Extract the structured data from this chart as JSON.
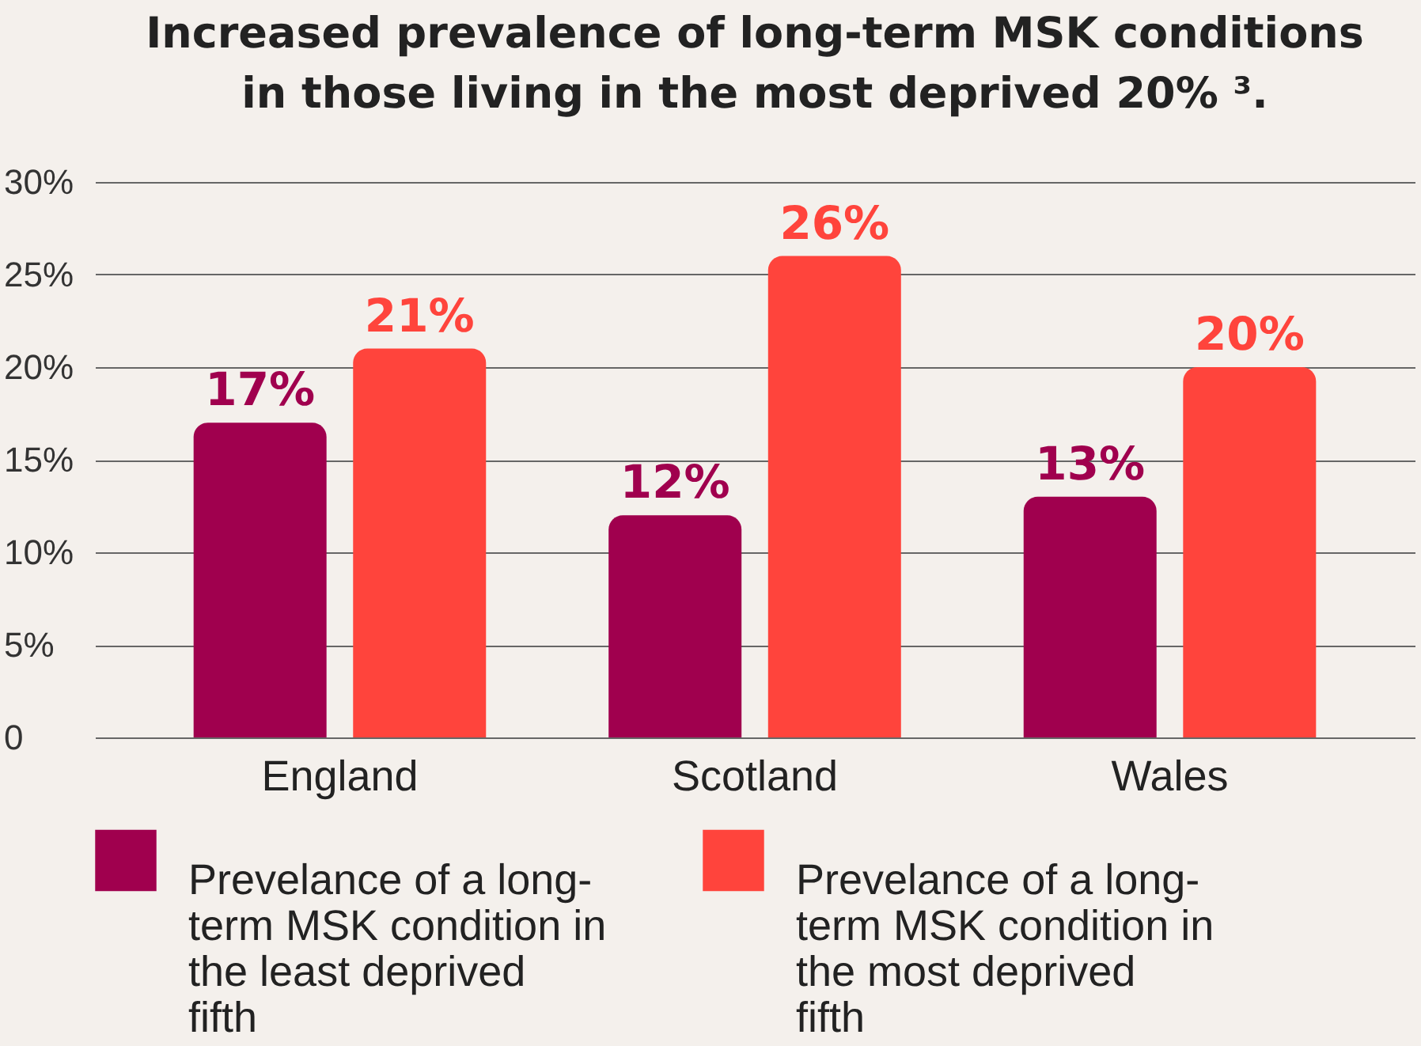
{
  "chart_data": {
    "type": "bar",
    "title": "Increased prevalence of long-term MSK conditions in those living in the most deprived 20% ³.",
    "categories": [
      "England",
      "Scotland",
      "Wales"
    ],
    "series": [
      {
        "name": "Prevelance of a long-term MSK condition in the least deprived fifth",
        "color": "#a0004e",
        "values": [
          17,
          12,
          13
        ],
        "value_labels": [
          "17%",
          "12%",
          "13%"
        ]
      },
      {
        "name": "Prevelance of a long-term MSK condition in the most deprived fifth",
        "color": "#ff443c",
        "values": [
          21,
          26,
          20
        ],
        "value_labels": [
          "21%",
          "26%",
          "20%"
        ]
      }
    ],
    "ylim": [
      0,
      30
    ],
    "yticks": [
      {
        "value": 0,
        "label": "0"
      },
      {
        "value": 5,
        "label": "5%"
      },
      {
        "value": 10,
        "label": "10%"
      },
      {
        "value": 15,
        "label": "15%"
      },
      {
        "value": 20,
        "label": "20%"
      },
      {
        "value": 25,
        "label": "25%"
      },
      {
        "value": 30,
        "label": "30%"
      }
    ],
    "grid": "y",
    "legend": "bottom"
  }
}
